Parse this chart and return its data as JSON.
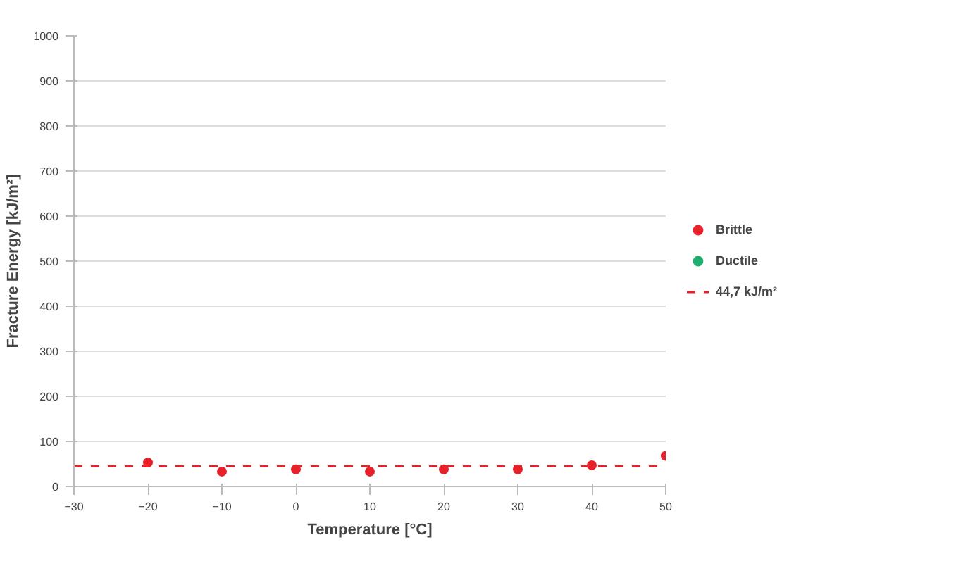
{
  "chart_data": {
    "type": "scatter",
    "xlabel": "Temperature [°C]",
    "ylabel": "Fracture Energy [kJ/m²]",
    "x": [
      -20,
      -10,
      0,
      10,
      20,
      30,
      40,
      50
    ],
    "series": [
      {
        "name": "Brittle",
        "color": "#e8202a",
        "values": [
          53,
          33,
          38,
          33,
          38,
          38,
          47,
          68
        ]
      },
      {
        "name": "Ductile",
        "color": "#1fae6f",
        "values": [
          null,
          null,
          null,
          null,
          null,
          null,
          null,
          null
        ]
      }
    ],
    "ref_lines": [
      {
        "axis": "y",
        "value": 44.7,
        "label": "44,7 kJ/m²",
        "color": "#e8202a",
        "line_style": "dashed"
      }
    ],
    "xlim": [
      -30,
      50
    ],
    "xticks": [
      -30,
      -20,
      -10,
      0,
      10,
      20,
      30,
      40,
      50
    ],
    "ylim": [
      0,
      1000
    ],
    "yticks": [
      0,
      100,
      200,
      300,
      400,
      500,
      600,
      700,
      800,
      900,
      1000
    ],
    "grid": "y",
    "legend": "right",
    "marker": "circle"
  }
}
